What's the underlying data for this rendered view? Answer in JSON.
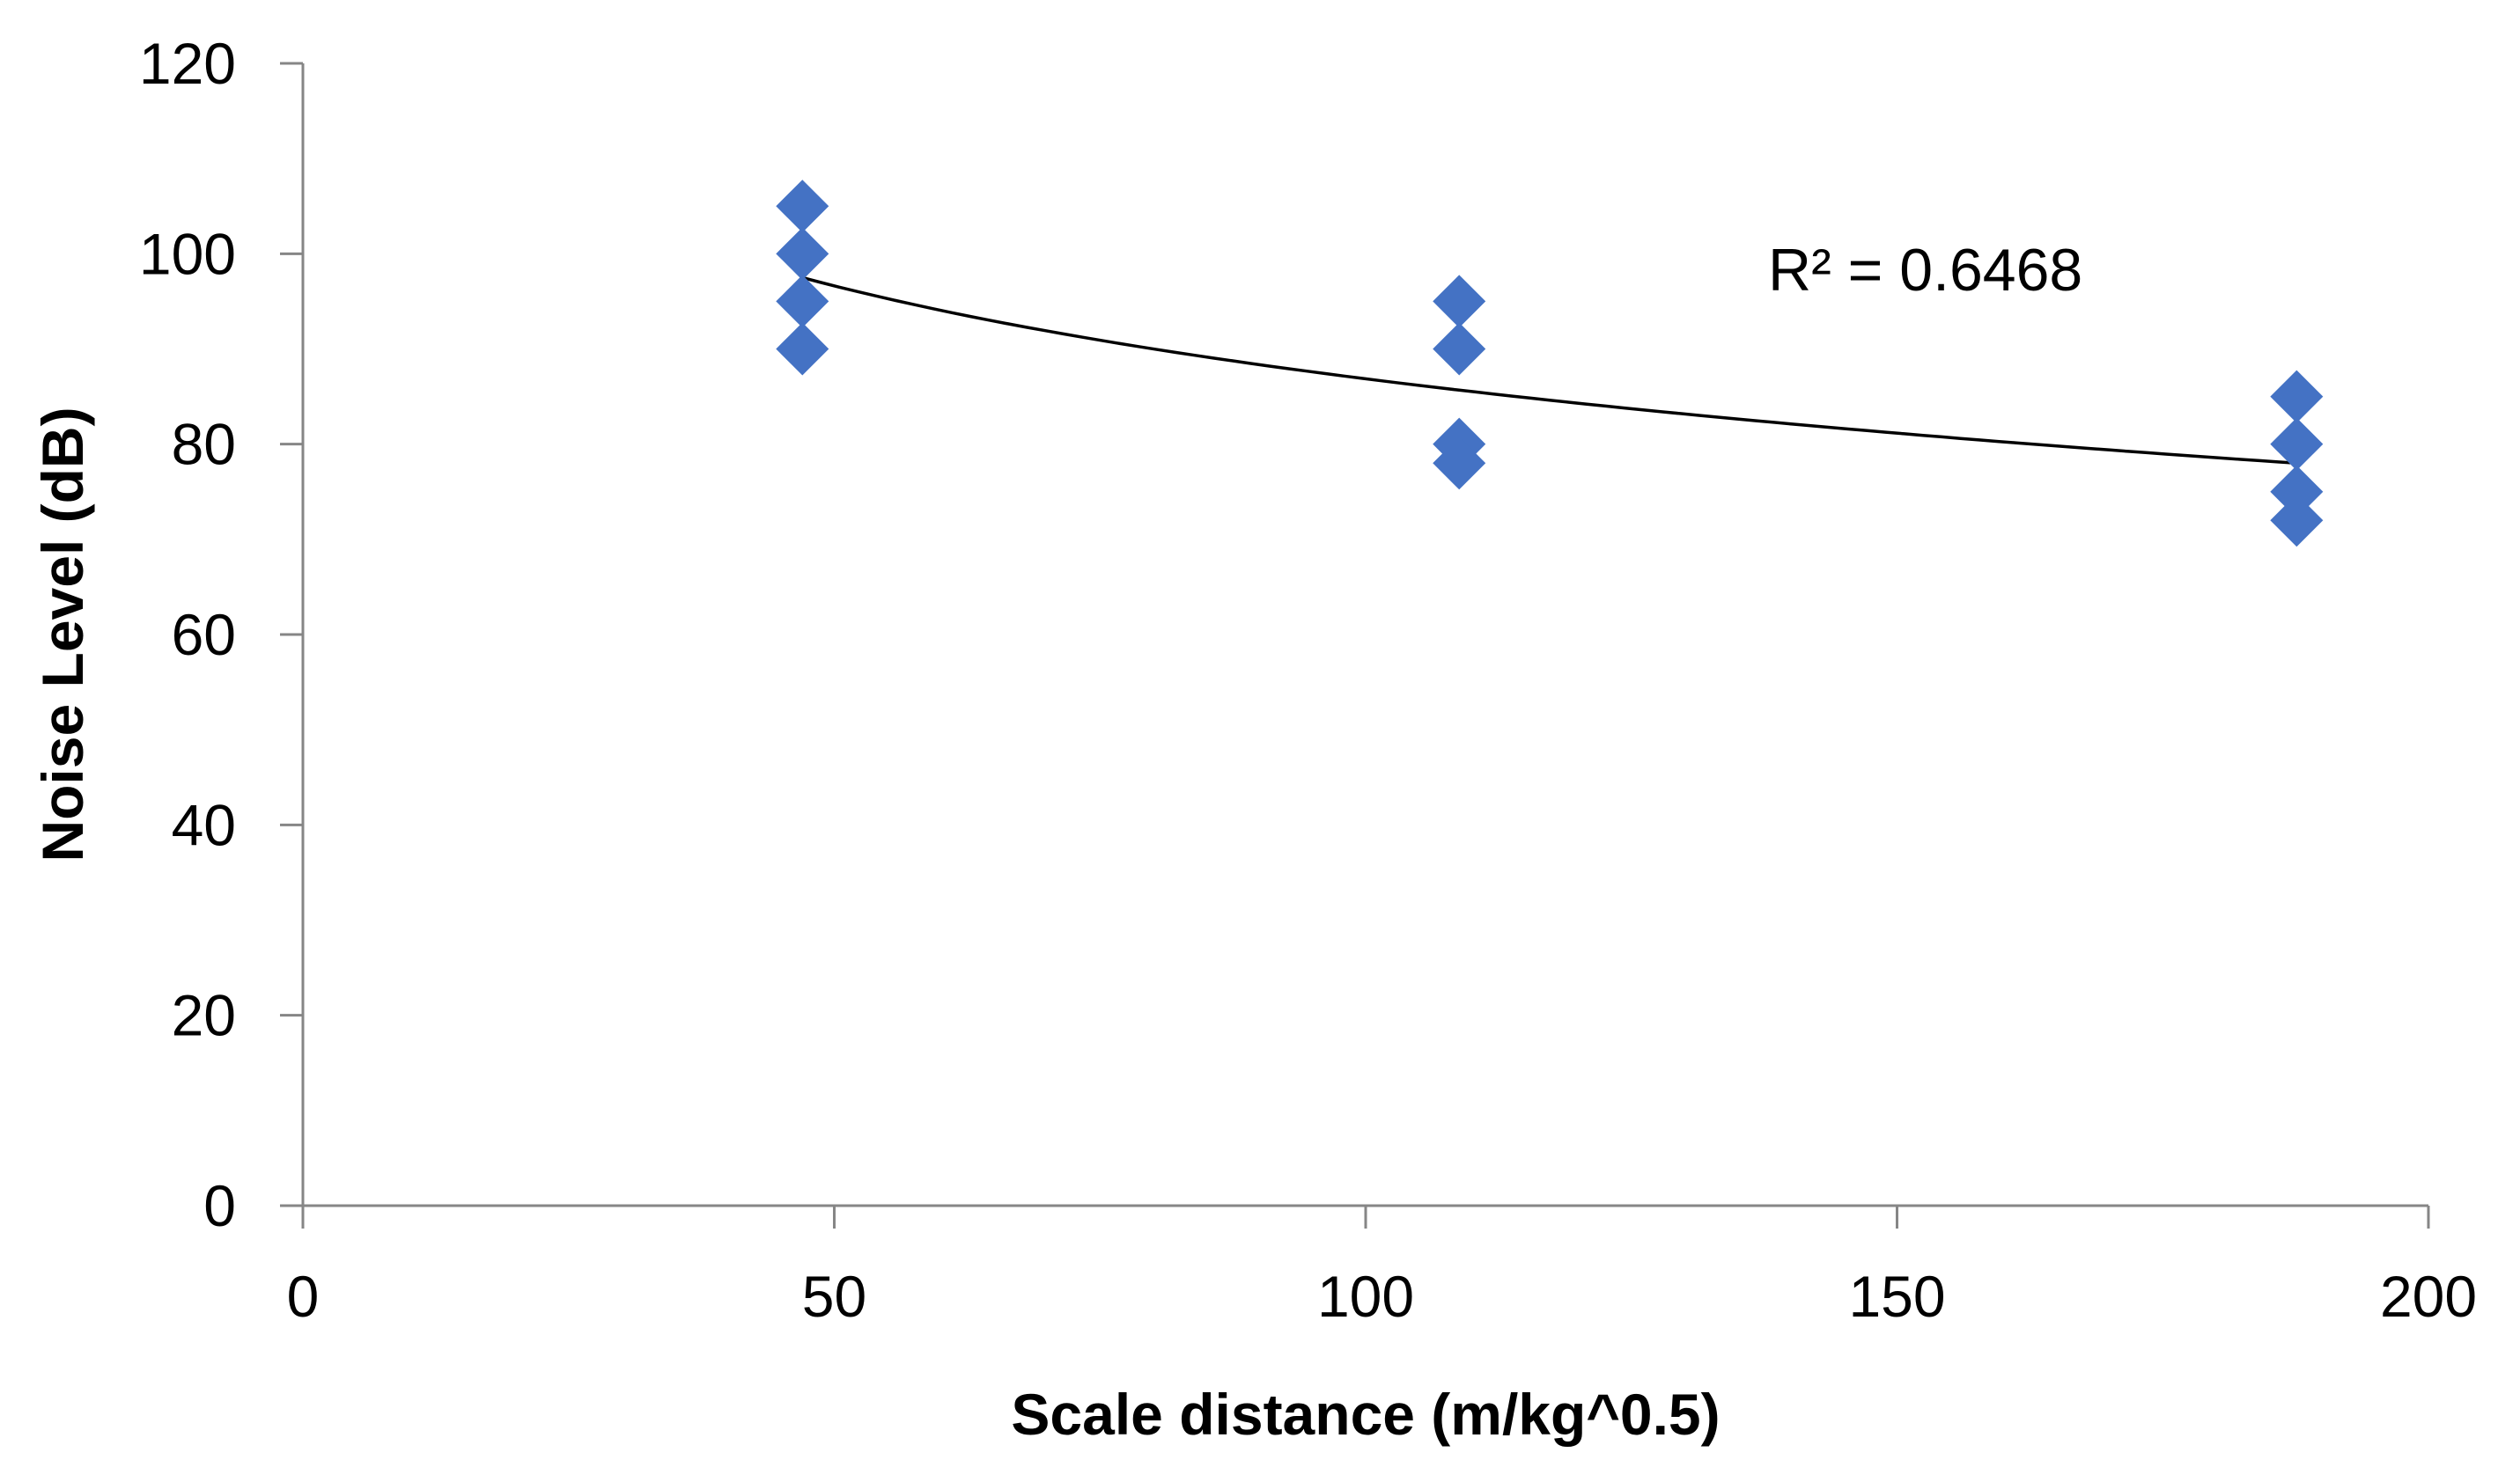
{
  "chart_data": {
    "type": "scatter",
    "title": "",
    "xlabel": "Scale distance (m/kg^0.5)",
    "ylabel": "Noise Level (dB)",
    "xlim": [
      0,
      200
    ],
    "ylim": [
      0,
      120
    ],
    "xticks": [
      0,
      50,
      100,
      150,
      200
    ],
    "yticks": [
      0,
      20,
      40,
      60,
      80,
      100,
      120
    ],
    "grid": false,
    "marker": "diamond",
    "marker_color": "#4472C4",
    "trendline_color": "#000000",
    "series": [
      {
        "name": "Noise Level",
        "x": [
          47,
          47,
          47,
          47,
          108.8,
          108.8,
          108.8,
          108.8,
          187.6,
          187.6,
          187.6,
          187.6
        ],
        "y": [
          105,
          100,
          95,
          90,
          95,
          90,
          80,
          78,
          85,
          80,
          75,
          72
        ]
      }
    ],
    "trendline": {
      "type": "logarithmic",
      "x_start": 47,
      "x_end": 187.6,
      "y_start": 97.5,
      "y_end": 78.0,
      "r2_label": "R² = 0.6468"
    }
  }
}
